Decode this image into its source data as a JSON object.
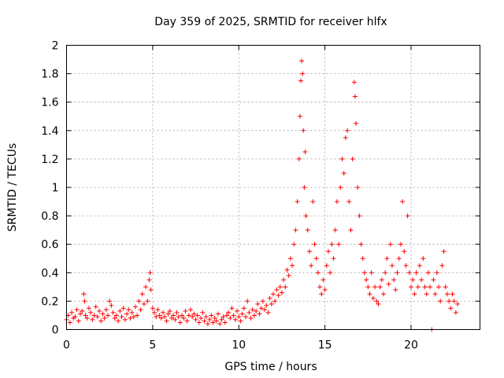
{
  "chart_data": {
    "type": "scatter",
    "title": "Day 359 of 2025, SRMTID for receiver hlfx",
    "xlabel": "GPS time / hours",
    "ylabel": "SRMTID / TECUs",
    "xlim": [
      0,
      24
    ],
    "ylim": [
      0,
      2
    ],
    "xticks": [
      "0",
      "5",
      "10",
      "15",
      "20"
    ],
    "yticks": [
      "0",
      "0.2",
      "0.4",
      "0.6",
      "0.8",
      "1",
      "1.2",
      "1.4",
      "1.6",
      "1.8",
      "2"
    ],
    "grid": true,
    "marker": "+",
    "color": "#ff0000",
    "series": [
      {
        "name": "SRMTID",
        "points": [
          [
            0.0,
            0.07
          ],
          [
            0.1,
            0.1
          ],
          [
            0.2,
            0.05
          ],
          [
            0.3,
            0.12
          ],
          [
            0.4,
            0.08
          ],
          [
            0.5,
            0.09
          ],
          [
            0.6,
            0.14
          ],
          [
            0.7,
            0.06
          ],
          [
            0.8,
            0.11
          ],
          [
            0.9,
            0.13
          ],
          [
            1.0,
            0.25
          ],
          [
            1.05,
            0.2
          ],
          [
            1.1,
            0.1
          ],
          [
            1.2,
            0.08
          ],
          [
            1.3,
            0.15
          ],
          [
            1.4,
            0.12
          ],
          [
            1.5,
            0.07
          ],
          [
            1.6,
            0.1
          ],
          [
            1.7,
            0.16
          ],
          [
            1.8,
            0.09
          ],
          [
            1.9,
            0.13
          ],
          [
            2.0,
            0.06
          ],
          [
            2.1,
            0.11
          ],
          [
            2.2,
            0.08
          ],
          [
            2.3,
            0.14
          ],
          [
            2.4,
            0.1
          ],
          [
            2.5,
            0.2
          ],
          [
            2.6,
            0.17
          ],
          [
            2.7,
            0.12
          ],
          [
            2.8,
            0.08
          ],
          [
            2.9,
            0.1
          ],
          [
            3.0,
            0.06
          ],
          [
            3.1,
            0.13
          ],
          [
            3.2,
            0.09
          ],
          [
            3.3,
            0.15
          ],
          [
            3.4,
            0.07
          ],
          [
            3.5,
            0.11
          ],
          [
            3.6,
            0.14
          ],
          [
            3.7,
            0.08
          ],
          [
            3.8,
            0.12
          ],
          [
            3.9,
            0.09
          ],
          [
            4.0,
            0.16
          ],
          [
            4.1,
            0.1
          ],
          [
            4.2,
            0.2
          ],
          [
            4.3,
            0.14
          ],
          [
            4.4,
            0.25
          ],
          [
            4.5,
            0.18
          ],
          [
            4.6,
            0.3
          ],
          [
            4.7,
            0.2
          ],
          [
            4.8,
            0.35
          ],
          [
            4.85,
            0.4
          ],
          [
            4.9,
            0.28
          ],
          [
            5.0,
            0.15
          ],
          [
            5.1,
            0.12
          ],
          [
            5.2,
            0.09
          ],
          [
            5.3,
            0.14
          ],
          [
            5.4,
            0.1
          ],
          [
            5.5,
            0.08
          ],
          [
            5.6,
            0.12
          ],
          [
            5.7,
            0.09
          ],
          [
            5.8,
            0.06
          ],
          [
            5.9,
            0.11
          ],
          [
            6.0,
            0.13
          ],
          [
            6.1,
            0.08
          ],
          [
            6.2,
            0.1
          ],
          [
            6.3,
            0.07
          ],
          [
            6.4,
            0.12
          ],
          [
            6.5,
            0.09
          ],
          [
            6.6,
            0.05
          ],
          [
            6.7,
            0.1
          ],
          [
            6.8,
            0.08
          ],
          [
            6.9,
            0.13
          ],
          [
            7.0,
            0.06
          ],
          [
            7.1,
            0.1
          ],
          [
            7.2,
            0.14
          ],
          [
            7.3,
            0.09
          ],
          [
            7.4,
            0.11
          ],
          [
            7.5,
            0.07
          ],
          [
            7.6,
            0.1
          ],
          [
            7.7,
            0.05
          ],
          [
            7.8,
            0.08
          ],
          [
            7.9,
            0.12
          ],
          [
            8.0,
            0.06
          ],
          [
            8.1,
            0.09
          ],
          [
            8.2,
            0.04
          ],
          [
            8.3,
            0.07
          ],
          [
            8.4,
            0.1
          ],
          [
            8.5,
            0.05
          ],
          [
            8.6,
            0.08
          ],
          [
            8.7,
            0.06
          ],
          [
            8.8,
            0.11
          ],
          [
            8.9,
            0.04
          ],
          [
            9.0,
            0.07
          ],
          [
            9.1,
            0.09
          ],
          [
            9.2,
            0.05
          ],
          [
            9.3,
            0.1
          ],
          [
            9.4,
            0.12
          ],
          [
            9.5,
            0.08
          ],
          [
            9.6,
            0.15
          ],
          [
            9.7,
            0.1
          ],
          [
            9.8,
            0.07
          ],
          [
            9.9,
            0.13
          ],
          [
            10.0,
            0.09
          ],
          [
            10.1,
            0.06
          ],
          [
            10.2,
            0.11
          ],
          [
            10.3,
            0.15
          ],
          [
            10.4,
            0.09
          ],
          [
            10.5,
            0.2
          ],
          [
            10.6,
            0.12
          ],
          [
            10.7,
            0.08
          ],
          [
            10.8,
            0.14
          ],
          [
            10.9,
            0.1
          ],
          [
            11.0,
            0.13
          ],
          [
            11.1,
            0.18
          ],
          [
            11.2,
            0.11
          ],
          [
            11.3,
            0.15
          ],
          [
            11.4,
            0.2
          ],
          [
            11.5,
            0.14
          ],
          [
            11.6,
            0.17
          ],
          [
            11.7,
            0.12
          ],
          [
            11.8,
            0.22
          ],
          [
            11.9,
            0.18
          ],
          [
            12.0,
            0.25
          ],
          [
            12.1,
            0.2
          ],
          [
            12.2,
            0.28
          ],
          [
            12.3,
            0.24
          ],
          [
            12.4,
            0.3
          ],
          [
            12.5,
            0.26
          ],
          [
            12.6,
            0.35
          ],
          [
            12.7,
            0.3
          ],
          [
            12.8,
            0.42
          ],
          [
            12.9,
            0.38
          ],
          [
            13.0,
            0.5
          ],
          [
            13.1,
            0.45
          ],
          [
            13.2,
            0.6
          ],
          [
            13.3,
            0.7
          ],
          [
            13.4,
            0.9
          ],
          [
            13.5,
            1.2
          ],
          [
            13.55,
            1.5
          ],
          [
            13.6,
            1.75
          ],
          [
            13.65,
            1.89
          ],
          [
            13.7,
            1.8
          ],
          [
            13.75,
            1.4
          ],
          [
            13.8,
            1.0
          ],
          [
            13.85,
            1.25
          ],
          [
            13.9,
            0.8
          ],
          [
            14.0,
            0.7
          ],
          [
            14.1,
            0.55
          ],
          [
            14.2,
            0.45
          ],
          [
            14.3,
            0.9
          ],
          [
            14.4,
            0.6
          ],
          [
            14.5,
            0.5
          ],
          [
            14.6,
            0.4
          ],
          [
            14.7,
            0.3
          ],
          [
            14.8,
            0.25
          ],
          [
            14.9,
            0.35
          ],
          [
            15.0,
            0.28
          ],
          [
            15.1,
            0.45
          ],
          [
            15.2,
            0.55
          ],
          [
            15.3,
            0.4
          ],
          [
            15.4,
            0.6
          ],
          [
            15.5,
            0.5
          ],
          [
            15.6,
            0.7
          ],
          [
            15.7,
            0.9
          ],
          [
            15.8,
            0.6
          ],
          [
            15.9,
            1.0
          ],
          [
            16.0,
            1.2
          ],
          [
            16.1,
            1.1
          ],
          [
            16.2,
            1.35
          ],
          [
            16.3,
            1.4
          ],
          [
            16.4,
            0.9
          ],
          [
            16.5,
            0.7
          ],
          [
            16.6,
            1.2
          ],
          [
            16.7,
            1.74
          ],
          [
            16.75,
            1.64
          ],
          [
            16.8,
            1.45
          ],
          [
            16.9,
            1.0
          ],
          [
            17.0,
            0.8
          ],
          [
            17.1,
            0.6
          ],
          [
            17.2,
            0.5
          ],
          [
            17.3,
            0.4
          ],
          [
            17.4,
            0.35
          ],
          [
            17.5,
            0.3
          ],
          [
            17.6,
            0.25
          ],
          [
            17.7,
            0.4
          ],
          [
            17.8,
            0.22
          ],
          [
            17.9,
            0.3
          ],
          [
            18.0,
            0.2
          ],
          [
            18.1,
            0.18
          ],
          [
            18.2,
            0.3
          ],
          [
            18.3,
            0.35
          ],
          [
            18.4,
            0.25
          ],
          [
            18.5,
            0.4
          ],
          [
            18.6,
            0.5
          ],
          [
            18.7,
            0.32
          ],
          [
            18.8,
            0.6
          ],
          [
            18.9,
            0.45
          ],
          [
            19.0,
            0.35
          ],
          [
            19.1,
            0.28
          ],
          [
            19.2,
            0.4
          ],
          [
            19.3,
            0.5
          ],
          [
            19.4,
            0.6
          ],
          [
            19.5,
            0.9
          ],
          [
            19.6,
            0.55
          ],
          [
            19.7,
            0.45
          ],
          [
            19.8,
            0.8
          ],
          [
            19.9,
            0.4
          ],
          [
            20.0,
            0.3
          ],
          [
            20.1,
            0.35
          ],
          [
            20.2,
            0.25
          ],
          [
            20.3,
            0.4
          ],
          [
            20.4,
            0.3
          ],
          [
            20.5,
            0.45
          ],
          [
            20.6,
            0.35
          ],
          [
            20.7,
            0.5
          ],
          [
            20.8,
            0.3
          ],
          [
            20.9,
            0.25
          ],
          [
            21.0,
            0.4
          ],
          [
            21.1,
            0.3
          ],
          [
            21.2,
            0.0
          ],
          [
            21.3,
            0.35
          ],
          [
            21.4,
            0.25
          ],
          [
            21.5,
            0.4
          ],
          [
            21.6,
            0.3
          ],
          [
            21.7,
            0.2
          ],
          [
            21.8,
            0.45
          ],
          [
            21.9,
            0.55
          ],
          [
            22.0,
            0.3
          ],
          [
            22.1,
            0.25
          ],
          [
            22.2,
            0.2
          ],
          [
            22.3,
            0.15
          ],
          [
            22.4,
            0.25
          ],
          [
            22.5,
            0.2
          ],
          [
            22.6,
            0.12
          ],
          [
            22.7,
            0.18
          ]
        ]
      }
    ]
  }
}
